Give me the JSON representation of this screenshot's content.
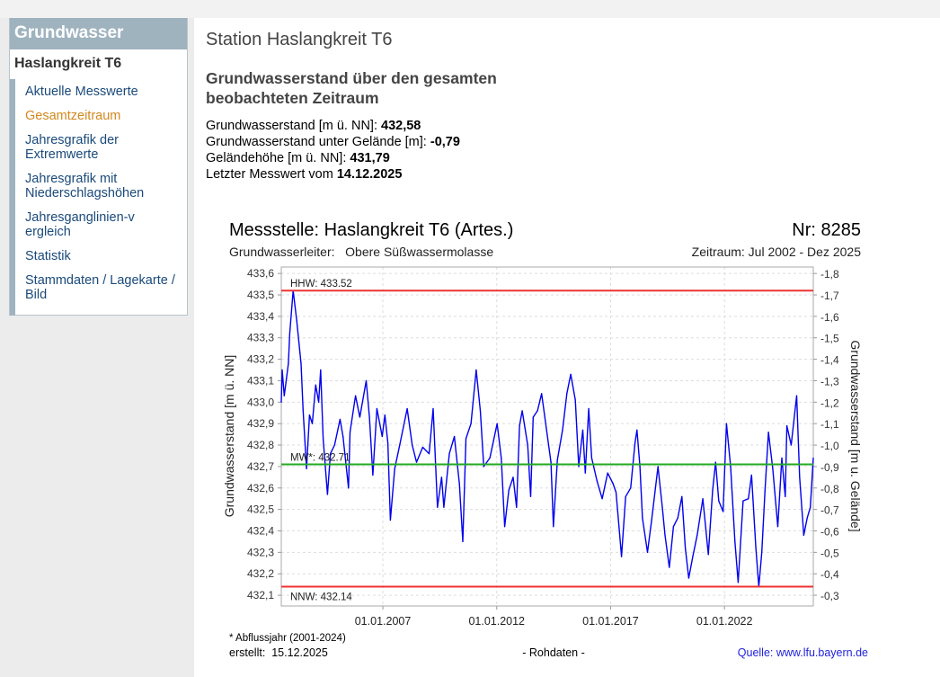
{
  "sidebar": {
    "header": "Grundwasser",
    "station": "Haslangkreit T6",
    "items": [
      {
        "label": "Aktuelle Messwerte",
        "active": false
      },
      {
        "label": "Gesamtzeitraum",
        "active": true
      },
      {
        "label": "Jahresgrafik der Extremwerte",
        "active": false
      },
      {
        "label": "Jahresgrafik mit Niederschlagshöhen",
        "active": false
      },
      {
        "label": "Jahresganglinien-vergleich",
        "active": false
      },
      {
        "label": "Statistik",
        "active": false
      },
      {
        "label": "Stammdaten / Lagekarte / Bild",
        "active": false
      }
    ]
  },
  "main": {
    "title": "Station Haslangkreit T6",
    "subtitle": "Grundwasserstand über den gesamten beobachteten Zeitraum",
    "info": [
      {
        "label": "Grundwasserstand [m ü. NN]: ",
        "value": "432,58"
      },
      {
        "label": "Grundwasserstand unter Gelände [m]: ",
        "value": "-0,79"
      },
      {
        "label": "Geländehöhe [m ü. NN]: ",
        "value": "431,79"
      },
      {
        "label": "Letzter Messwert vom ",
        "value": "14.12.2025"
      }
    ]
  },
  "chart_data": {
    "type": "line",
    "title": "Messstelle: Haslangkreit T6 (Artes.)",
    "number": "Nr: 8285",
    "aquifer": "Grundwasserleiter:   Obere Süßwassermolasse",
    "period": "Zeitraum: Jul 2002 - Dez 2025",
    "ylabel": "Grundwasserstand [m ü. NN]",
    "ylabel_right": "Grundwasserstand [m u. Gelände]",
    "ylim": [
      432.05,
      433.63
    ],
    "xlim": [
      2002.54,
      2025.9
    ],
    "yticks": [
      "433,6",
      "433,5",
      "433,4",
      "433,3",
      "433,2",
      "433,1",
      "433,0",
      "432,9",
      "432,8",
      "432,7",
      "432,6",
      "432,5",
      "432,4",
      "432,3",
      "432,2",
      "432,1"
    ],
    "yticks_right": [
      "-1,8",
      "-1,7",
      "-1,6",
      "-1,5",
      "-1,4",
      "-1,3",
      "-1,2",
      "-1,1",
      "-1,0",
      "-0,9",
      "-0,8",
      "-0,7",
      "-0,6",
      "-0,5",
      "-0,4",
      "-0,3"
    ],
    "xticks": [
      {
        "label": "01.01.2007",
        "x": 2007.0
      },
      {
        "label": "01.01.2012",
        "x": 2012.0
      },
      {
        "label": "01.01.2017",
        "x": 2017.0
      },
      {
        "label": "01.01.2022",
        "x": 2022.0
      }
    ],
    "grid": true,
    "reference_lines": [
      {
        "label": "HHW: 433.52",
        "value": 433.52,
        "color": "#ee3333"
      },
      {
        "label": "MW*: 432.71",
        "value": 432.71,
        "color": "#22aa22"
      },
      {
        "label": "NNW: 432.14",
        "value": 432.14,
        "color": "#ee3333"
      }
    ],
    "series": [
      {
        "name": "Grundwasserstand",
        "color": "#0000ee",
        "points": [
          [
            2002.54,
            433.0
          ],
          [
            2002.58,
            433.15
          ],
          [
            2002.67,
            433.03
          ],
          [
            2002.85,
            433.18
          ],
          [
            2002.91,
            433.32
          ],
          [
            2003.06,
            433.52
          ],
          [
            2003.22,
            433.38
          ],
          [
            2003.41,
            433.18
          ],
          [
            2003.5,
            432.96
          ],
          [
            2003.65,
            432.69
          ],
          [
            2003.78,
            432.94
          ],
          [
            2003.9,
            432.9
          ],
          [
            2004.05,
            433.08
          ],
          [
            2004.18,
            433.0
          ],
          [
            2004.27,
            433.15
          ],
          [
            2004.38,
            432.83
          ],
          [
            2004.57,
            432.57
          ],
          [
            2004.7,
            432.76
          ],
          [
            2004.88,
            432.8
          ],
          [
            2005.12,
            432.92
          ],
          [
            2005.25,
            432.84
          ],
          [
            2005.49,
            432.6
          ],
          [
            2005.56,
            432.86
          ],
          [
            2005.8,
            433.03
          ],
          [
            2005.99,
            432.93
          ],
          [
            2006.27,
            433.1
          ],
          [
            2006.41,
            432.93
          ],
          [
            2006.56,
            432.66
          ],
          [
            2006.74,
            432.97
          ],
          [
            2006.97,
            432.84
          ],
          [
            2007.09,
            432.94
          ],
          [
            2007.22,
            432.81
          ],
          [
            2007.33,
            432.45
          ],
          [
            2007.52,
            432.69
          ],
          [
            2007.74,
            432.8
          ],
          [
            2008.07,
            432.97
          ],
          [
            2008.29,
            432.8
          ],
          [
            2008.48,
            432.72
          ],
          [
            2008.75,
            432.79
          ],
          [
            2009.03,
            432.76
          ],
          [
            2009.21,
            432.97
          ],
          [
            2009.4,
            432.51
          ],
          [
            2009.58,
            432.65
          ],
          [
            2009.68,
            432.51
          ],
          [
            2009.92,
            432.76
          ],
          [
            2010.14,
            432.84
          ],
          [
            2010.36,
            432.62
          ],
          [
            2010.51,
            432.35
          ],
          [
            2010.65,
            432.83
          ],
          [
            2010.87,
            432.9
          ],
          [
            2011.1,
            433.15
          ],
          [
            2011.28,
            432.96
          ],
          [
            2011.43,
            432.7
          ],
          [
            2011.7,
            432.74
          ],
          [
            2012.02,
            432.9
          ],
          [
            2012.2,
            432.74
          ],
          [
            2012.35,
            432.42
          ],
          [
            2012.53,
            432.59
          ],
          [
            2012.72,
            432.65
          ],
          [
            2012.87,
            432.51
          ],
          [
            2013.0,
            432.89
          ],
          [
            2013.12,
            432.96
          ],
          [
            2013.36,
            432.8
          ],
          [
            2013.49,
            432.56
          ],
          [
            2013.6,
            432.93
          ],
          [
            2013.79,
            432.96
          ],
          [
            2013.97,
            433.04
          ],
          [
            2014.19,
            432.87
          ],
          [
            2014.38,
            432.72
          ],
          [
            2014.49,
            432.42
          ],
          [
            2014.66,
            432.73
          ],
          [
            2014.89,
            432.87
          ],
          [
            2015.08,
            433.04
          ],
          [
            2015.25,
            433.13
          ],
          [
            2015.45,
            433.01
          ],
          [
            2015.6,
            432.7
          ],
          [
            2015.78,
            432.87
          ],
          [
            2015.89,
            432.67
          ],
          [
            2016.04,
            432.97
          ],
          [
            2016.17,
            432.74
          ],
          [
            2016.41,
            432.63
          ],
          [
            2016.63,
            432.55
          ],
          [
            2016.87,
            432.67
          ],
          [
            2017.11,
            432.62
          ],
          [
            2017.24,
            432.58
          ],
          [
            2017.37,
            432.42
          ],
          [
            2017.48,
            432.28
          ],
          [
            2017.66,
            432.56
          ],
          [
            2017.88,
            432.6
          ],
          [
            2018.07,
            432.81
          ],
          [
            2018.16,
            432.87
          ],
          [
            2018.29,
            432.7
          ],
          [
            2018.4,
            432.46
          ],
          [
            2018.62,
            432.3
          ],
          [
            2018.8,
            432.45
          ],
          [
            2019.08,
            432.7
          ],
          [
            2019.27,
            432.51
          ],
          [
            2019.39,
            432.38
          ],
          [
            2019.58,
            432.23
          ],
          [
            2019.76,
            432.42
          ],
          [
            2019.95,
            432.46
          ],
          [
            2020.13,
            432.56
          ],
          [
            2020.28,
            432.32
          ],
          [
            2020.43,
            432.18
          ],
          [
            2020.61,
            432.28
          ],
          [
            2020.8,
            432.38
          ],
          [
            2021.05,
            432.55
          ],
          [
            2021.29,
            432.29
          ],
          [
            2021.48,
            432.59
          ],
          [
            2021.61,
            432.72
          ],
          [
            2021.75,
            432.54
          ],
          [
            2021.94,
            432.49
          ],
          [
            2022.09,
            432.9
          ],
          [
            2022.27,
            432.7
          ],
          [
            2022.46,
            432.35
          ],
          [
            2022.6,
            432.16
          ],
          [
            2022.82,
            432.54
          ],
          [
            2023.05,
            432.55
          ],
          [
            2023.19,
            432.66
          ],
          [
            2023.38,
            432.32
          ],
          [
            2023.51,
            432.14
          ],
          [
            2023.64,
            432.3
          ],
          [
            2023.78,
            432.59
          ],
          [
            2023.93,
            432.86
          ],
          [
            2024.12,
            432.69
          ],
          [
            2024.34,
            432.42
          ],
          [
            2024.52,
            432.74
          ],
          [
            2024.67,
            432.56
          ],
          [
            2024.74,
            432.89
          ],
          [
            2024.93,
            432.8
          ],
          [
            2025.17,
            433.03
          ],
          [
            2025.3,
            432.65
          ],
          [
            2025.48,
            432.38
          ],
          [
            2025.63,
            432.46
          ],
          [
            2025.77,
            432.51
          ],
          [
            2025.9,
            432.74
          ]
        ]
      }
    ],
    "footnote": "* Abflussjahr (2001-2024)",
    "created": "erstellt:  15.12.2025",
    "rawdata": "- Rohdaten -",
    "source": "Quelle: www.lfu.bayern.de"
  }
}
